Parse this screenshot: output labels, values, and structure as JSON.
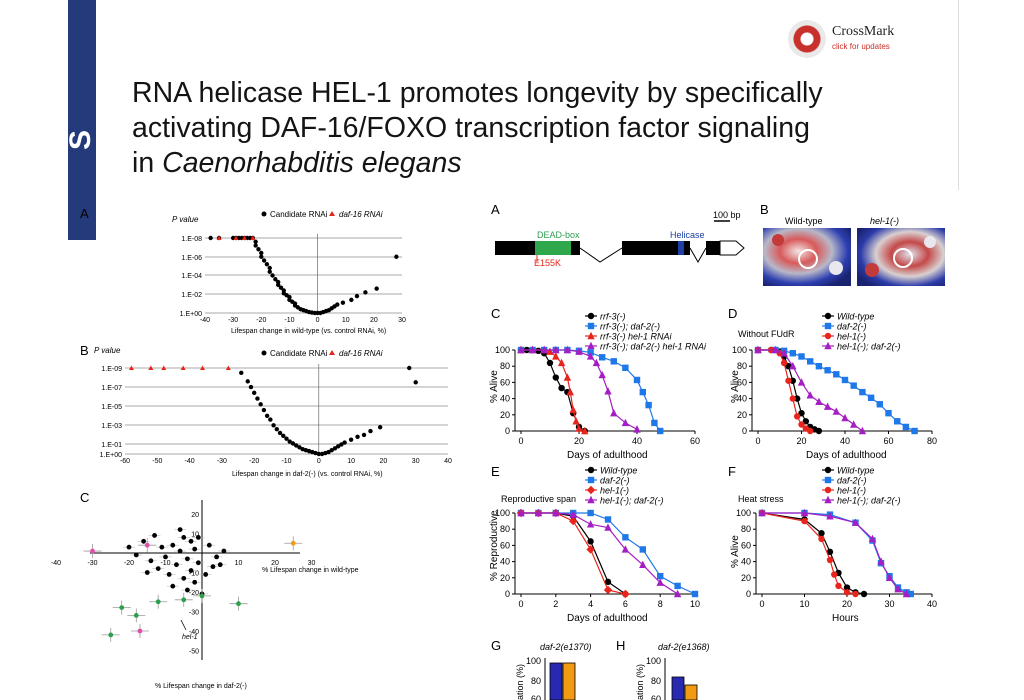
{
  "crossmark": {
    "name": "CrossMark",
    "sub": "click for updates"
  },
  "title": {
    "line1": "RNA helicase HEL-1 promotes longevity by specifically",
    "line2": "activating DAF-16/FOXO transcription factor signaling",
    "line3_prefix": "in ",
    "line3_species": "Caenorhabditis elegans"
  },
  "left_panels": {
    "A": {
      "label": "A",
      "ylabel": "P value",
      "legend_candidate": "Candidate RNAi",
      "legend_daf16": "daf-16 RNAi",
      "yticks": [
        "1.E-08",
        "1.E-06",
        "1.E-04",
        "1.E-02",
        "1.E+00"
      ],
      "xticks": [
        "-40",
        "-30",
        "-20",
        "-10",
        "0",
        "10",
        "20",
        "30"
      ],
      "xlabel": "Lifespan change in wild-type (vs. control RNAi, %)"
    },
    "B": {
      "label": "B",
      "ylabel": "P value",
      "legend_candidate": "Candidate RNAi",
      "legend_daf16": "daf-16 RNAi",
      "yticks": [
        "1.E-09",
        "1.E-07",
        "1.E-05",
        "1.E-03",
        "1.E-01",
        "1.E+00"
      ],
      "xticks": [
        "-60",
        "-50",
        "-40",
        "-30",
        "-20",
        "-10",
        "0",
        "10",
        "20",
        "30",
        "40"
      ],
      "xlabel": "Lifespan change in daf-2(-) (vs. control RNAi, %)"
    },
    "C": {
      "label": "C",
      "yticks": [
        "20",
        "10",
        "-10",
        "-20",
        "-30",
        "-40",
        "-50"
      ],
      "xticks": [
        "-40",
        "-30",
        "-20",
        "-10",
        "10",
        "20",
        "30"
      ],
      "xlabel": "% Lifespan change in wild-type",
      "ylabel": "% Lifespan change in daf-2(-)",
      "callout": "hel-1"
    }
  },
  "right_panels": {
    "A": {
      "label": "A",
      "scale": "100 bp",
      "box1": "DEAD-box",
      "box2": "Helicase",
      "mutation": "E155K"
    },
    "B": {
      "label": "B",
      "wt": "Wild-type",
      "mut": "hel-1(-)"
    },
    "C": {
      "label": "C",
      "ylabel": "% Alive",
      "xlabel": "Days of adulthood",
      "yticks": [
        "0",
        "20",
        "40",
        "60",
        "80",
        "100"
      ],
      "xticks": [
        "0",
        "20",
        "40",
        "60"
      ],
      "legend": [
        "rrf-3(-)",
        "rrf-3(-); daf-2(-)",
        "rrf-3(-) hel-1 RNAi",
        "rrf-3(-); daf-2(-) hel-1 RNAi"
      ]
    },
    "D": {
      "label": "D",
      "subtitle": "Without FUdR",
      "ylabel": "% Alive",
      "xlabel": "Days of adulthood",
      "yticks": [
        "0",
        "20",
        "40",
        "60",
        "80",
        "100"
      ],
      "xticks": [
        "0",
        "20",
        "40",
        "60",
        "80"
      ],
      "legend": [
        "Wild-type",
        "daf-2(-)",
        "hel-1(-)",
        "hel-1(-); daf-2(-)"
      ]
    },
    "E": {
      "label": "E",
      "subtitle": "Reproductive span",
      "ylabel": "% Reproductive",
      "xlabel": "Days of adulthood",
      "yticks": [
        "0",
        "20",
        "40",
        "60",
        "80",
        "100"
      ],
      "xticks": [
        "0",
        "2",
        "4",
        "6",
        "8",
        "10"
      ],
      "legend": [
        "Wild-type",
        "daf-2(-)",
        "hel-1(-)",
        "hel-1(-); daf-2(-)"
      ]
    },
    "F": {
      "label": "F",
      "subtitle": "Heat stress",
      "ylabel": "% Alive",
      "xlabel": "Hours",
      "yticks": [
        "0",
        "20",
        "40",
        "60",
        "80",
        "100"
      ],
      "xticks": [
        "0",
        "10",
        "20",
        "30",
        "40"
      ],
      "legend": [
        "Wild-type",
        "daf-2(-)",
        "hel-1(-)",
        "hel-1(-); daf-2(-)"
      ]
    },
    "G": {
      "label": "G",
      "title": "daf-2(e1370)",
      "ylabel": "ation (%)",
      "yticks": [
        "100",
        "80",
        "60"
      ]
    },
    "H": {
      "label": "H",
      "title": "daf-2(e1368)",
      "ylabel": "ation (%)",
      "yticks": [
        "100",
        "80",
        "60"
      ]
    }
  },
  "colors": {
    "black": "#000000",
    "blue": "#1f78e8",
    "red": "#e8251d",
    "purple": "#a51ec4",
    "green": "#2e9e4f",
    "orange": "#f29a12"
  },
  "chart_data": [
    {
      "type": "line",
      "panel": "C",
      "xlabel": "Days of adulthood",
      "ylabel": "% Alive",
      "xlim": [
        0,
        60
      ],
      "ylim": [
        0,
        100
      ],
      "series": [
        {
          "name": "rrf-3(-)",
          "color": "#000000",
          "marker": "circle",
          "x": [
            0,
            2,
            4,
            6,
            8,
            10,
            12,
            14,
            16,
            18,
            20,
            22
          ],
          "y": [
            100,
            100,
            100,
            99,
            96,
            84,
            66,
            53,
            48,
            22,
            5,
            0
          ]
        },
        {
          "name": "rrf-3(-); daf-2(-)",
          "color": "#1f78e8",
          "marker": "square",
          "x": [
            0,
            4,
            8,
            12,
            16,
            20,
            24,
            28,
            32,
            36,
            40,
            42,
            44,
            46,
            48
          ],
          "y": [
            100,
            100,
            100,
            100,
            100,
            99,
            97,
            91,
            86,
            78,
            63,
            48,
            32,
            10,
            0
          ]
        },
        {
          "name": "rrf-3(-) hel-1 RNAi",
          "color": "#e8251d",
          "marker": "triangle",
          "x": [
            0,
            4,
            8,
            10,
            12,
            14,
            16,
            17,
            18,
            19,
            20,
            22
          ],
          "y": [
            100,
            100,
            100,
            98,
            92,
            84,
            66,
            48,
            26,
            12,
            3,
            0
          ]
        },
        {
          "name": "rrf-3(-); daf-2(-) hel-1 RNAi",
          "color": "#a51ec4",
          "marker": "triangle",
          "x": [
            0,
            4,
            8,
            12,
            16,
            20,
            24,
            26,
            28,
            30,
            32,
            36,
            40
          ],
          "y": [
            100,
            100,
            100,
            100,
            100,
            98,
            92,
            84,
            69,
            49,
            22,
            10,
            2
          ]
        }
      ]
    },
    {
      "type": "line",
      "panel": "D",
      "xlabel": "Days of adulthood",
      "ylabel": "% Alive",
      "xlim": [
        0,
        80
      ],
      "ylim": [
        0,
        100
      ],
      "series": [
        {
          "name": "Wild-type",
          "color": "#000000",
          "marker": "circle",
          "x": [
            0,
            6,
            10,
            12,
            14,
            16,
            18,
            20,
            22,
            24,
            26,
            28
          ],
          "y": [
            100,
            100,
            98,
            92,
            80,
            62,
            40,
            22,
            12,
            5,
            2,
            0
          ]
        },
        {
          "name": "daf-2(-)",
          "color": "#1f78e8",
          "marker": "square",
          "x": [
            0,
            8,
            12,
            16,
            20,
            24,
            28,
            32,
            36,
            40,
            44,
            48,
            52,
            56,
            60,
            64,
            68,
            72
          ],
          "y": [
            100,
            100,
            99,
            96,
            92,
            86,
            80,
            75,
            70,
            63,
            56,
            48,
            41,
            33,
            22,
            12,
            5,
            0
          ]
        },
        {
          "name": "hel-1(-)",
          "color": "#e8251d",
          "marker": "circle",
          "x": [
            0,
            6,
            10,
            12,
            14,
            16,
            18,
            20,
            22,
            24
          ],
          "y": [
            100,
            100,
            96,
            84,
            62,
            40,
            18,
            8,
            3,
            0
          ]
        },
        {
          "name": "hel-1(-); daf-2(-)",
          "color": "#a51ec4",
          "marker": "triangle",
          "x": [
            0,
            8,
            12,
            16,
            20,
            24,
            28,
            32,
            36,
            40,
            44,
            48
          ],
          "y": [
            100,
            100,
            96,
            80,
            60,
            44,
            36,
            30,
            24,
            16,
            8,
            0
          ]
        }
      ]
    },
    {
      "type": "line",
      "panel": "E",
      "xlabel": "Days of adulthood",
      "ylabel": "% Reproductive",
      "xlim": [
        0,
        10
      ],
      "ylim": [
        0,
        100
      ],
      "series": [
        {
          "name": "Wild-type",
          "color": "#000000",
          "marker": "circle",
          "x": [
            0,
            1,
            2,
            3,
            4,
            5,
            6
          ],
          "y": [
            100,
            100,
            100,
            96,
            65,
            15,
            0
          ]
        },
        {
          "name": "daf-2(-)",
          "color": "#1f78e8",
          "marker": "square",
          "x": [
            0,
            1,
            2,
            3,
            4,
            5,
            6,
            7,
            8,
            9,
            10
          ],
          "y": [
            100,
            100,
            100,
            100,
            100,
            92,
            70,
            55,
            22,
            10,
            0
          ]
        },
        {
          "name": "hel-1(-)",
          "color": "#e8251d",
          "marker": "diamond",
          "x": [
            0,
            1,
            2,
            3,
            4,
            5,
            6
          ],
          "y": [
            100,
            100,
            100,
            90,
            55,
            5,
            0
          ]
        },
        {
          "name": "hel-1(-); daf-2(-)",
          "color": "#a51ec4",
          "marker": "triangle",
          "x": [
            0,
            1,
            2,
            3,
            4,
            5,
            6,
            7,
            8,
            9
          ],
          "y": [
            100,
            100,
            100,
            98,
            86,
            82,
            55,
            36,
            14,
            0
          ]
        }
      ]
    },
    {
      "type": "line",
      "panel": "F",
      "xlabel": "Hours",
      "ylabel": "% Alive",
      "xlim": [
        0,
        40
      ],
      "ylim": [
        0,
        100
      ],
      "series": [
        {
          "name": "Wild-type",
          "color": "#000000",
          "marker": "circle",
          "x": [
            0,
            10,
            14,
            16,
            18,
            20,
            22,
            24
          ],
          "y": [
            100,
            92,
            75,
            52,
            26,
            8,
            2,
            0
          ]
        },
        {
          "name": "daf-2(-)",
          "color": "#1f78e8",
          "marker": "square",
          "x": [
            0,
            10,
            16,
            22,
            26,
            28,
            30,
            32,
            34,
            35
          ],
          "y": [
            100,
            100,
            98,
            88,
            66,
            38,
            22,
            8,
            2,
            0
          ]
        },
        {
          "name": "hel-1(-)",
          "color": "#e8251d",
          "marker": "circle",
          "x": [
            0,
            10,
            14,
            16,
            17,
            18,
            20,
            22
          ],
          "y": [
            100,
            90,
            68,
            42,
            24,
            10,
            2,
            0
          ]
        },
        {
          "name": "hel-1(-); daf-2(-)",
          "color": "#a51ec4",
          "marker": "triangle",
          "x": [
            0,
            10,
            16,
            22,
            26,
            28,
            30,
            32,
            34
          ],
          "y": [
            100,
            100,
            96,
            88,
            68,
            40,
            20,
            6,
            0
          ]
        }
      ]
    },
    {
      "type": "scatter",
      "panel": "A-left",
      "xlabel": "Lifespan change in wild-type (vs. control RNAi, %)",
      "ylabel": "P value",
      "xlim": [
        -40,
        30
      ],
      "ylim_log10": [
        -8,
        0
      ],
      "series": [
        {
          "name": "Candidate RNAi",
          "color": "#000000",
          "x": [
            -38,
            -35,
            -30,
            -29,
            -28,
            -27,
            -26,
            -25,
            -24,
            -23,
            -22,
            -22,
            -21,
            -20,
            -20,
            -19,
            -18,
            -17,
            -17,
            -16,
            -15,
            -14,
            -14,
            -13,
            -12,
            -12,
            -11,
            -10,
            -10,
            -9,
            -8,
            -8,
            -7,
            -6,
            -5,
            -4,
            -3,
            -2,
            -1,
            0,
            1,
            2,
            3,
            4,
            5,
            6,
            7,
            9,
            12,
            14,
            17,
            21,
            28
          ],
          "y": [
            -8,
            -8,
            -8,
            -8,
            -8,
            -8,
            -8,
            -8,
            -8,
            -8,
            -7.6,
            -7.2,
            -6.8,
            -6.4,
            -6.0,
            -5.6,
            -5.2,
            -4.8,
            -4.4,
            -4.0,
            -3.6,
            -3.3,
            -3.0,
            -2.7,
            -2.4,
            -2.1,
            -1.9,
            -1.7,
            -1.4,
            -1.2,
            -1.0,
            -0.8,
            -0.6,
            -0.4,
            -0.3,
            -0.2,
            -0.1,
            -0.05,
            0,
            0,
            0,
            -0.1,
            -0.2,
            -0.3,
            -0.5,
            -0.7,
            -0.9,
            -1.1,
            -1.4,
            -1.8,
            -2.2,
            -2.6,
            -6.0
          ]
        },
        {
          "name": "daf-16 RNAi",
          "color": "#e8251d",
          "x": [
            -35,
            -29,
            -26,
            -23
          ],
          "y": [
            -8,
            -8,
            -8,
            -8
          ]
        }
      ]
    },
    {
      "type": "scatter",
      "panel": "B-left",
      "xlabel": "Lifespan change in daf-2(-) (vs. control RNAi, %)",
      "ylabel": "P value",
      "xlim": [
        -60,
        40
      ],
      "ylim_log10": [
        -9,
        0
      ],
      "series": [
        {
          "name": "Candidate RNAi",
          "color": "#000000",
          "x": [
            -24,
            -22,
            -21,
            -20,
            -19,
            -18,
            -17,
            -16,
            -15,
            -14,
            -13,
            -12,
            -11,
            -10,
            -9,
            -8,
            -7,
            -6,
            -5,
            -4,
            -3,
            -2,
            -1,
            0,
            1,
            2,
            3,
            4,
            5,
            6,
            7,
            8,
            10,
            12,
            14,
            16,
            19,
            28,
            30
          ],
          "y": [
            -8.5,
            -7.6,
            -7.0,
            -6.4,
            -5.8,
            -5.2,
            -4.6,
            -4.0,
            -3.6,
            -3.0,
            -2.6,
            -2.2,
            -1.9,
            -1.6,
            -1.3,
            -1.1,
            -0.9,
            -0.7,
            -0.5,
            -0.4,
            -0.3,
            -0.2,
            -0.1,
            0,
            0,
            -0.1,
            -0.2,
            -0.4,
            -0.6,
            -0.8,
            -1.0,
            -1.2,
            -1.5,
            -1.8,
            -2.0,
            -2.4,
            -2.8,
            -9.0,
            -7.5
          ]
        },
        {
          "name": "daf-16 RNAi",
          "color": "#e8251d",
          "x": [
            -58,
            -52,
            -48,
            -42,
            -36,
            -28
          ],
          "y": [
            -9,
            -9,
            -9,
            -9,
            -9,
            -9
          ]
        }
      ]
    }
  ]
}
